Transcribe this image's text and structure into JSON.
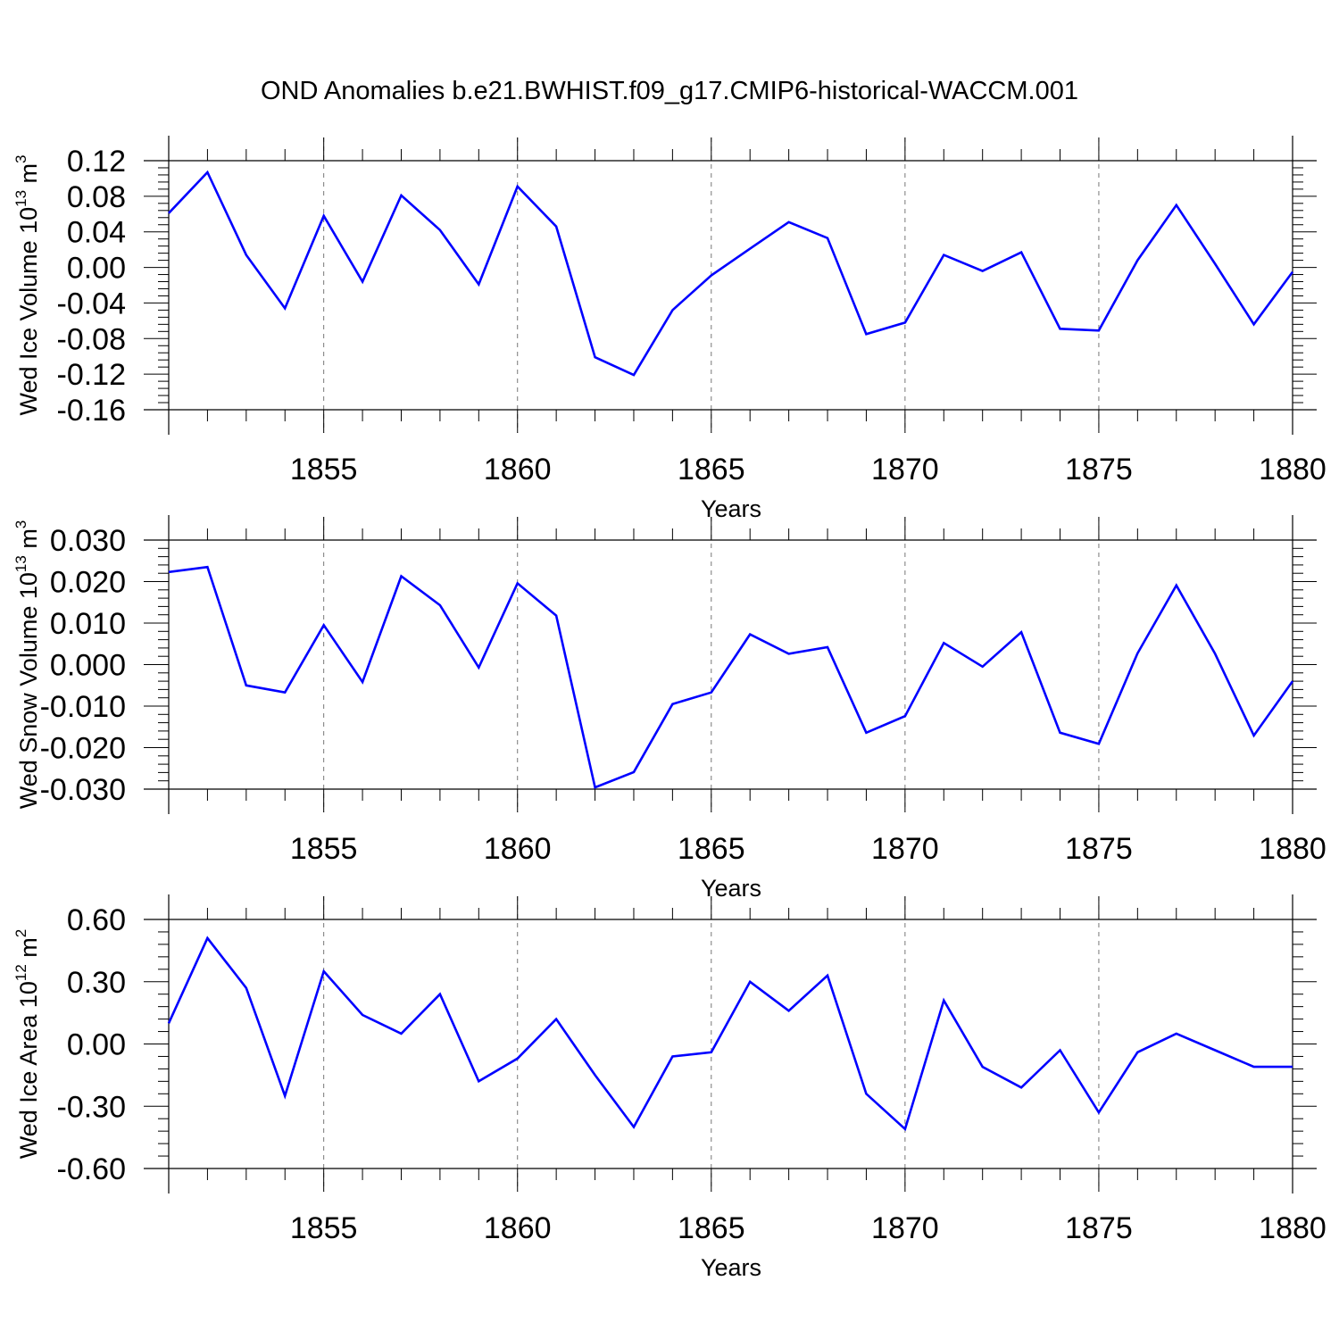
{
  "title": "OND Anomalies b.e21.BWHIST.f09_g17.CMIP6-historical-WACCM.001",
  "colors": {
    "line": "#0000ff",
    "axis": "#000000",
    "grid": "#777777"
  },
  "chart_data": [
    {
      "type": "line",
      "xlabel": "Years",
      "ylabel": {
        "text": "Wed Ice Volume 10",
        "exp": "13",
        "unit": " m",
        "unit_exp": "3"
      },
      "xlim": [
        1851,
        1880
      ],
      "ylim": [
        -0.16,
        0.12
      ],
      "xticks": [
        1855,
        1860,
        1865,
        1870,
        1875,
        1880
      ],
      "yticks": [
        "0.12",
        "0.08",
        "0.04",
        "0.00",
        "-0.04",
        "-0.08",
        "-0.12",
        "-0.16"
      ],
      "grid": "dashed vertical at major x ticks",
      "series": [
        {
          "x": [
            1851,
            1852,
            1853,
            1854,
            1855,
            1856,
            1857,
            1858,
            1859,
            1860,
            1861,
            1862,
            1863,
            1864,
            1865,
            1866,
            1867,
            1868,
            1869,
            1870,
            1871,
            1872,
            1873,
            1874,
            1875,
            1876,
            1877,
            1878,
            1879,
            1880
          ],
          "y": [
            0.061,
            0.107,
            0.014,
            -0.046,
            0.058,
            -0.016,
            0.081,
            0.042,
            -0.019,
            0.091,
            0.046,
            -0.101,
            -0.121,
            -0.048,
            -0.009,
            0.021,
            0.051,
            0.033,
            -0.075,
            -0.062,
            0.014,
            -0.004,
            0.017,
            -0.069,
            -0.071,
            0.008,
            0.07,
            0.004,
            -0.064,
            -0.005
          ]
        }
      ]
    },
    {
      "type": "line",
      "xlabel": "Years",
      "ylabel": {
        "text": "Wed Snow Volume 10",
        "exp": "13",
        "unit": " m",
        "unit_exp": "3"
      },
      "xlim": [
        1851,
        1880
      ],
      "ylim": [
        -0.03,
        0.03
      ],
      "xticks": [
        1855,
        1860,
        1865,
        1870,
        1875,
        1880
      ],
      "yticks": [
        "0.030",
        "0.020",
        "0.010",
        "0.000",
        "-0.010",
        "-0.020",
        "-0.030"
      ],
      "grid": "dashed vertical at major x ticks",
      "series": [
        {
          "x": [
            1851,
            1852,
            1853,
            1854,
            1855,
            1856,
            1857,
            1858,
            1859,
            1860,
            1861,
            1862,
            1863,
            1864,
            1865,
            1866,
            1867,
            1868,
            1869,
            1870,
            1871,
            1872,
            1873,
            1874,
            1875,
            1876,
            1877,
            1878,
            1879,
            1880
          ],
          "y": [
            0.0223,
            0.0235,
            -0.005,
            -0.0067,
            0.0095,
            -0.0042,
            0.0213,
            0.0143,
            -0.0007,
            0.0196,
            0.0118,
            -0.0296,
            -0.0259,
            -0.0095,
            -0.0067,
            0.0073,
            0.0026,
            0.0042,
            -0.0164,
            -0.0124,
            0.0052,
            -0.0005,
            0.0078,
            -0.0164,
            -0.0191,
            0.0027,
            0.0191,
            0.0026,
            -0.0171,
            -0.004
          ]
        }
      ]
    },
    {
      "type": "line",
      "xlabel": "Years",
      "ylabel": {
        "text": "Wed Ice Area 10",
        "exp": "12",
        "unit": " m",
        "unit_exp": "2"
      },
      "xlim": [
        1851,
        1880
      ],
      "ylim": [
        -0.6,
        0.6
      ],
      "xticks": [
        1855,
        1860,
        1865,
        1870,
        1875,
        1880
      ],
      "yticks": [
        "0.60",
        "0.30",
        "0.00",
        "-0.30",
        "-0.60"
      ],
      "grid": "dashed vertical at major x ticks",
      "series": [
        {
          "x": [
            1851,
            1852,
            1853,
            1854,
            1855,
            1856,
            1857,
            1858,
            1859,
            1860,
            1861,
            1862,
            1863,
            1864,
            1865,
            1866,
            1867,
            1868,
            1869,
            1870,
            1871,
            1872,
            1873,
            1874,
            1875,
            1876,
            1877,
            1878,
            1879,
            1880
          ],
          "y": [
            0.1,
            0.51,
            0.27,
            -0.25,
            0.35,
            0.14,
            0.05,
            0.24,
            -0.18,
            -0.07,
            0.12,
            -0.15,
            -0.4,
            -0.06,
            -0.04,
            0.3,
            0.16,
            0.33,
            -0.24,
            -0.41,
            0.21,
            -0.11,
            -0.21,
            -0.03,
            -0.33,
            -0.04,
            0.05,
            -0.03,
            -0.11,
            -0.11
          ]
        }
      ]
    }
  ]
}
